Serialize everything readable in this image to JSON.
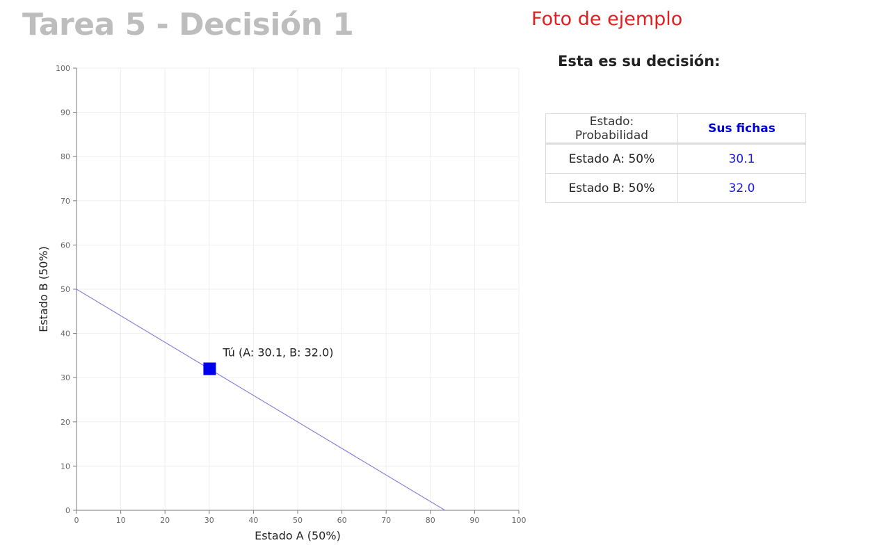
{
  "header": {
    "title": "Tarea 5 - Decisión 1",
    "example_label": "Foto de ejemplo"
  },
  "decision": {
    "heading": "Esta es su decisión:",
    "table": {
      "headers": [
        "Estado: Probabilidad",
        "Sus fichas"
      ],
      "rows": [
        {
          "state": "Estado A: 50%",
          "chips": "30.1"
        },
        {
          "state": "Estado B: 50%",
          "chips": "32.0"
        }
      ]
    }
  },
  "chart_data": {
    "type": "scatter",
    "xlabel": "Estado A (50%)",
    "ylabel": "Estado B (50%)",
    "xlim": [
      0,
      100
    ],
    "ylim": [
      0,
      100
    ],
    "xticks": [
      0,
      10,
      20,
      30,
      40,
      50,
      60,
      70,
      80,
      90,
      100
    ],
    "yticks": [
      0,
      10,
      20,
      30,
      40,
      50,
      60,
      70,
      80,
      90,
      100
    ],
    "grid": true,
    "budget_line": {
      "x": [
        0,
        83.3
      ],
      "y": [
        50,
        0
      ],
      "color": "#8a7fe0"
    },
    "points": [
      {
        "x": 30.1,
        "y": 32.0,
        "label": "Tú (A: 30.1, B: 32.0)",
        "color": "#0000ee",
        "marker": "square"
      }
    ]
  }
}
